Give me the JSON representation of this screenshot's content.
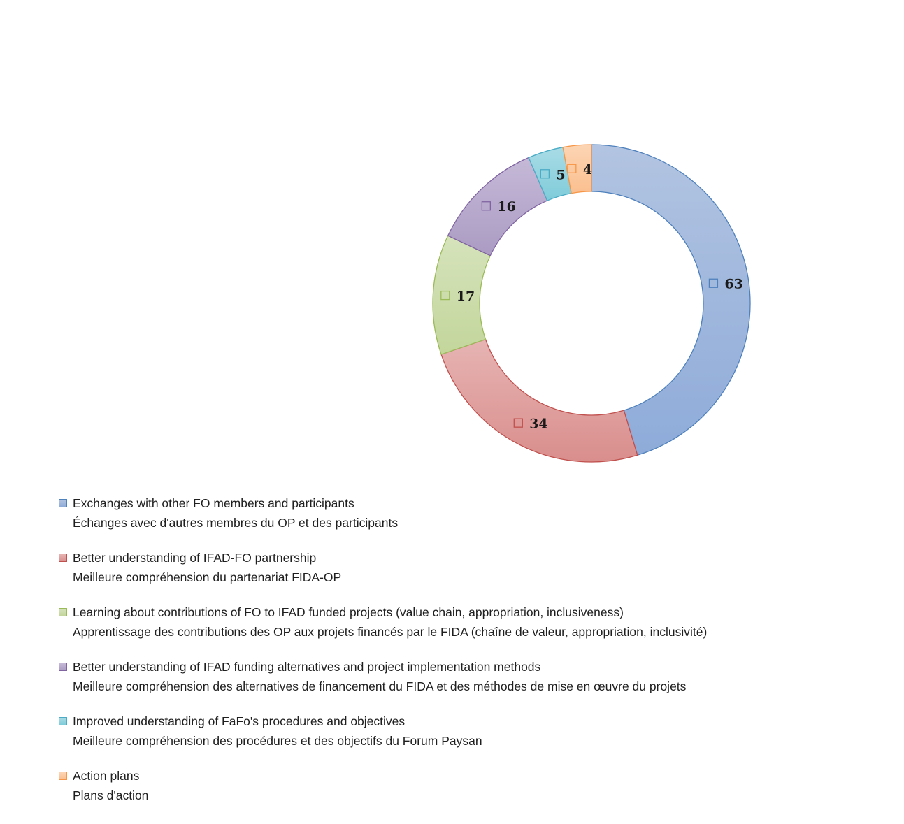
{
  "chart_data": {
    "type": "pie",
    "variant": "doughnut",
    "title": "",
    "slices": [
      {
        "en": "Exchanges with other FO members and participants",
        "fr": "Échanges avec d'autres membres du OP et des participants",
        "value": 63,
        "color": "#8eabd9",
        "color_light": "#b2c4e1",
        "stroke": "#4f81bd"
      },
      {
        "en": "Better understanding of IFAD-FO partnership",
        "fr": "Meilleure compréhension du partenariat FIDA-OP",
        "value": 34,
        "color": "#d98e8c",
        "color_light": "#e6b4b3",
        "stroke": "#c0504d"
      },
      {
        "en": "Learning about contributions of FO to IFAD funded projects (value chain, appropriation, inclusiveness)",
        "fr": "Apprentissage des contributions des OP aux projets financés par le FIDA (chaîne de valeur, appropriation, inclusivité)",
        "value": 17,
        "color": "#c3d69b",
        "color_light": "#d6e3bc",
        "stroke": "#9bbb59"
      },
      {
        "en": "Better understanding of IFAD funding alternatives and project implementation methods",
        "fr": "Meilleure compréhension des alternatives de financement du FIDA et des méthodes de mise en œuvre du projets",
        "value": 16,
        "color": "#ab9bc3",
        "color_light": "#c5b9d7",
        "stroke": "#8064a2"
      },
      {
        "en": "Improved understanding of FaFo's procedures and objectives",
        "fr": "Meilleure compréhension des procédures et des objectifs du Forum Paysan",
        "value": 5,
        "color": "#7fcbd9",
        "color_light": "#a9dce6",
        "stroke": "#4bacc6"
      },
      {
        "en": "Action plans",
        "fr": "Plans d'action",
        "value": 4,
        "color": "#fbbf8f",
        "color_light": "#fcd5b4",
        "stroke": "#f79646"
      }
    ],
    "start_angle": "12 o'clock",
    "direction": "clockwise",
    "data_labels": "values with legend key",
    "legend": "bottom-left"
  }
}
